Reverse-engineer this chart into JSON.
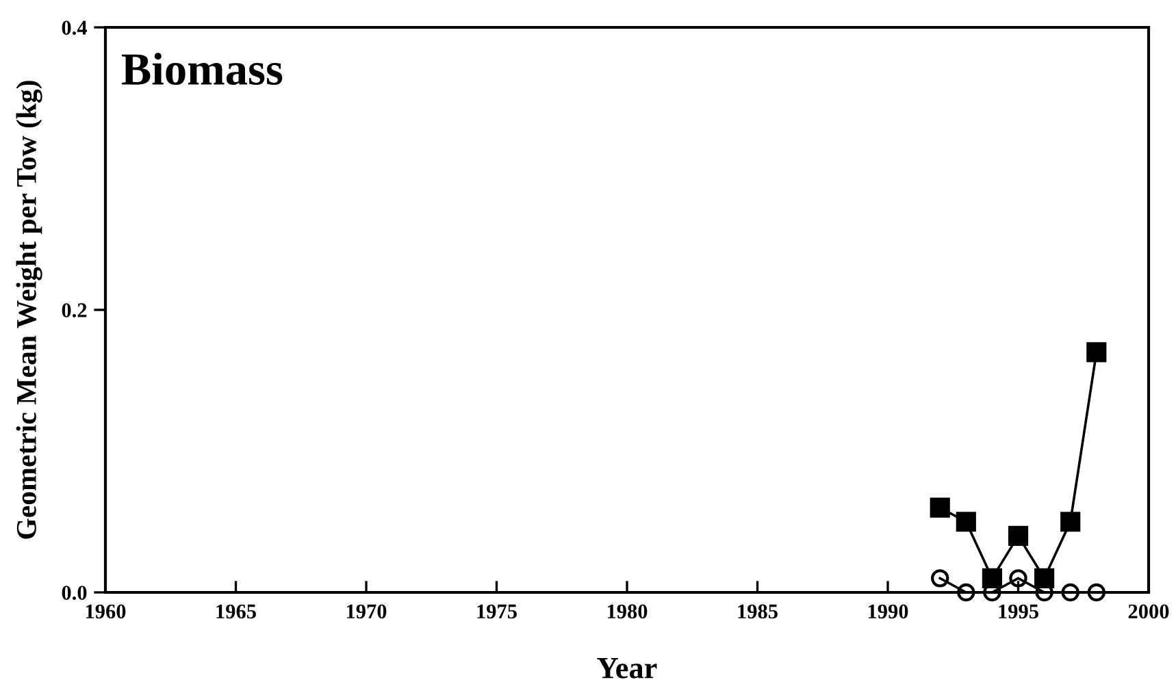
{
  "chart_data": {
    "type": "line",
    "title": "Biomass",
    "xlabel": "Year",
    "ylabel": "Geometric Mean Weight per Tow (kg)",
    "x": [
      1992,
      1993,
      1994,
      1995,
      1996,
      1997,
      1998
    ],
    "series": [
      {
        "color": "#000000",
        "marker": "square",
        "values": [
          0.06,
          0.05,
          0.01,
          0.04,
          0.01,
          0.05,
          0.17
        ]
      },
      {
        "color": "#000000",
        "marker": "circle",
        "values": [
          0.01,
          0,
          0,
          0.01,
          0,
          0,
          0
        ]
      }
    ],
    "xlim": [
      1960,
      2000
    ],
    "xticks": [
      1960,
      1965,
      1970,
      1975,
      1980,
      1985,
      1990,
      1995,
      2000
    ],
    "ylim": [
      0,
      0.4
    ],
    "yticks": [
      {
        "value": 0,
        "label": "0.0"
      },
      0.2,
      0.4
    ],
    "grid": false,
    "line_style": "solid"
  }
}
